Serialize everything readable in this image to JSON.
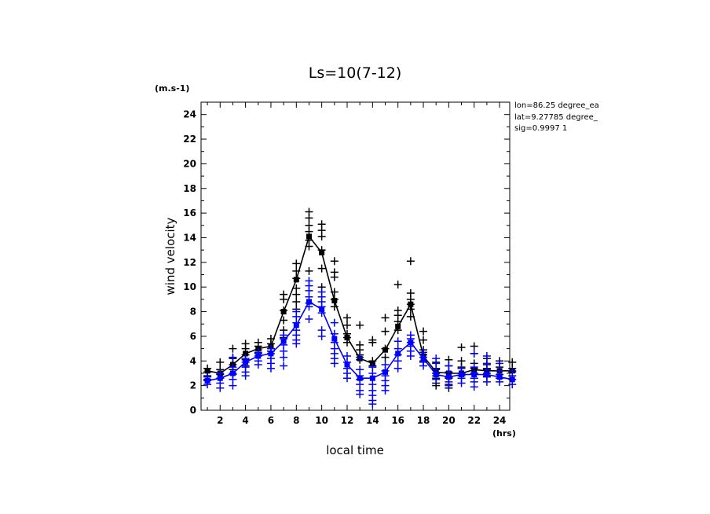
{
  "chart_data": {
    "type": "scatter",
    "title": "Ls=10(7-12)",
    "xlabel": "local time",
    "ylabel": "wind velocity",
    "x_unit": "(hrs)",
    "y_unit": "(m.s-1)",
    "xlim": [
      0.5,
      24.8
    ],
    "ylim": [
      0,
      25
    ],
    "x_ticks": [
      2,
      4,
      6,
      8,
      10,
      12,
      14,
      16,
      18,
      20,
      22,
      24
    ],
    "y_ticks": [
      0,
      2,
      4,
      6,
      8,
      10,
      12,
      14,
      16,
      18,
      20,
      22,
      24
    ],
    "info_lines": [
      "lon=86.25 degree_ea",
      "lat=9.27785 degree_",
      "sig=0.9997 1"
    ],
    "x": [
      1,
      2,
      3,
      4,
      5,
      6,
      7,
      8,
      9,
      10,
      11,
      12,
      13,
      14,
      15,
      16,
      17,
      18,
      19,
      20,
      21,
      22,
      23,
      24,
      25
    ],
    "series": [
      {
        "color": "#000000",
        "mean": [
          3.2,
          3.0,
          3.7,
          4.6,
          5.0,
          5.2,
          8.0,
          10.6,
          14.1,
          12.8,
          8.9,
          5.9,
          4.2,
          3.8,
          4.9,
          6.8,
          8.6,
          4.4,
          3.1,
          3.0,
          3.0,
          3.3,
          3.2,
          3.2,
          3.2
        ],
        "points": [
          [
            3.4,
            3.1,
            2.8,
            2.5
          ],
          [
            3.9,
            3.3,
            2.9,
            2.6
          ],
          [
            5.0,
            4.2,
            3.7,
            3.3,
            2.9
          ],
          [
            5.4,
            5.0,
            4.5,
            4.1,
            3.6
          ],
          [
            5.5,
            5.2,
            4.9,
            4.6
          ],
          [
            5.8,
            5.4,
            5.0,
            4.8
          ],
          [
            9.4,
            9.0,
            8.1,
            7.3,
            6.5,
            5.9
          ],
          [
            11.9,
            11.3,
            10.7,
            9.9,
            9.4,
            8.8,
            8.2
          ],
          [
            16.1,
            15.6,
            15.0,
            14.5,
            13.8,
            13.3,
            11.3
          ],
          [
            15.1,
            14.6,
            14.1,
            13.0,
            11.5,
            10.0
          ],
          [
            12.1,
            11.2,
            10.8,
            9.6,
            9.0,
            8.4
          ],
          [
            7.5,
            6.9,
            6.2,
            5.9,
            5.5
          ],
          [
            6.9,
            5.3,
            4.9,
            4.5,
            4.1
          ],
          [
            5.7,
            5.5,
            4.0,
            3.6
          ],
          [
            7.5,
            6.4,
            5.0,
            4.3
          ],
          [
            10.2,
            8.1,
            7.7,
            7.2,
            6.5
          ],
          [
            12.1,
            9.5,
            9.0,
            8.6,
            8.2,
            7.6
          ],
          [
            6.4,
            5.7,
            4.9,
            4.5,
            4.0
          ],
          [
            3.9,
            3.4,
            3.0,
            2.6,
            2.2,
            2.0
          ],
          [
            4.1,
            3.6,
            3.1,
            2.6,
            2.1,
            1.8
          ],
          [
            5.1,
            4.0,
            3.5,
            3.0,
            2.8
          ],
          [
            5.2,
            4.6,
            3.8,
            3.4,
            3.0,
            2.6
          ],
          [
            4.2,
            3.7,
            3.4,
            3.0,
            2.7
          ],
          [
            4.0,
            3.5,
            3.2,
            2.9
          ],
          [
            3.9,
            3.4,
            3.1
          ]
        ]
      },
      {
        "color": "#0000ff",
        "mean": [
          2.4,
          2.6,
          3.0,
          3.9,
          4.4,
          4.6,
          5.6,
          6.9,
          8.8,
          8.2,
          5.8,
          3.7,
          2.6,
          2.6,
          3.1,
          4.6,
          5.5,
          4.2,
          2.9,
          2.7,
          2.9,
          2.9,
          2.9,
          2.7,
          2.5
        ],
        "points": [
          [
            2.7,
            2.4,
            2.1
          ],
          [
            3.0,
            2.6,
            2.2,
            1.8
          ],
          [
            4.3,
            3.5,
            3.0,
            2.5,
            2.0
          ],
          [
            4.2,
            3.9,
            3.5,
            3.1,
            2.8
          ],
          [
            4.7,
            4.4,
            4.0,
            3.7
          ],
          [
            5.0,
            4.6,
            4.2,
            3.8,
            3.4
          ],
          [
            6.1,
            5.8,
            5.3,
            4.8,
            4.3,
            3.6
          ],
          [
            8.0,
            7.6,
            7.1,
            6.5,
            6.1,
            5.7,
            5.4
          ],
          [
            10.5,
            10.1,
            9.7,
            9.2,
            8.7,
            8.4,
            7.4
          ],
          [
            9.6,
            9.2,
            8.8,
            8.4,
            7.9,
            6.5,
            6.0
          ],
          [
            7.1,
            6.2,
            5.5,
            5.0,
            4.6,
            4.2,
            3.8
          ],
          [
            4.4,
            3.9,
            3.4,
            3.0,
            2.6
          ],
          [
            4.3,
            3.3,
            2.8,
            2.5,
            2.1,
            1.6,
            1.3
          ],
          [
            3.5,
            3.0,
            2.1,
            1.6,
            1.2,
            0.8,
            0.5
          ],
          [
            3.7,
            3.2,
            2.8,
            2.4,
            2.0,
            1.6
          ],
          [
            5.6,
            5.0,
            4.5,
            4.0,
            3.4
          ],
          [
            6.1,
            5.8,
            5.5,
            5.2,
            4.8,
            4.4
          ],
          [
            4.7,
            4.3,
            3.9,
            3.6
          ],
          [
            4.2,
            3.8,
            3.3,
            2.8,
            2.5
          ],
          [
            3.6,
            3.1,
            2.7,
            2.3,
            2.0
          ],
          [
            3.4,
            3.0,
            2.6,
            2.2
          ],
          [
            4.6,
            3.5,
            3.0,
            2.6,
            2.3,
            1.9
          ],
          [
            4.4,
            3.8,
            3.3,
            2.8,
            2.3
          ],
          [
            3.8,
            3.2,
            2.9,
            2.6,
            2.3
          ],
          [
            3.2,
            2.8,
            2.5,
            2.1
          ]
        ]
      }
    ]
  }
}
